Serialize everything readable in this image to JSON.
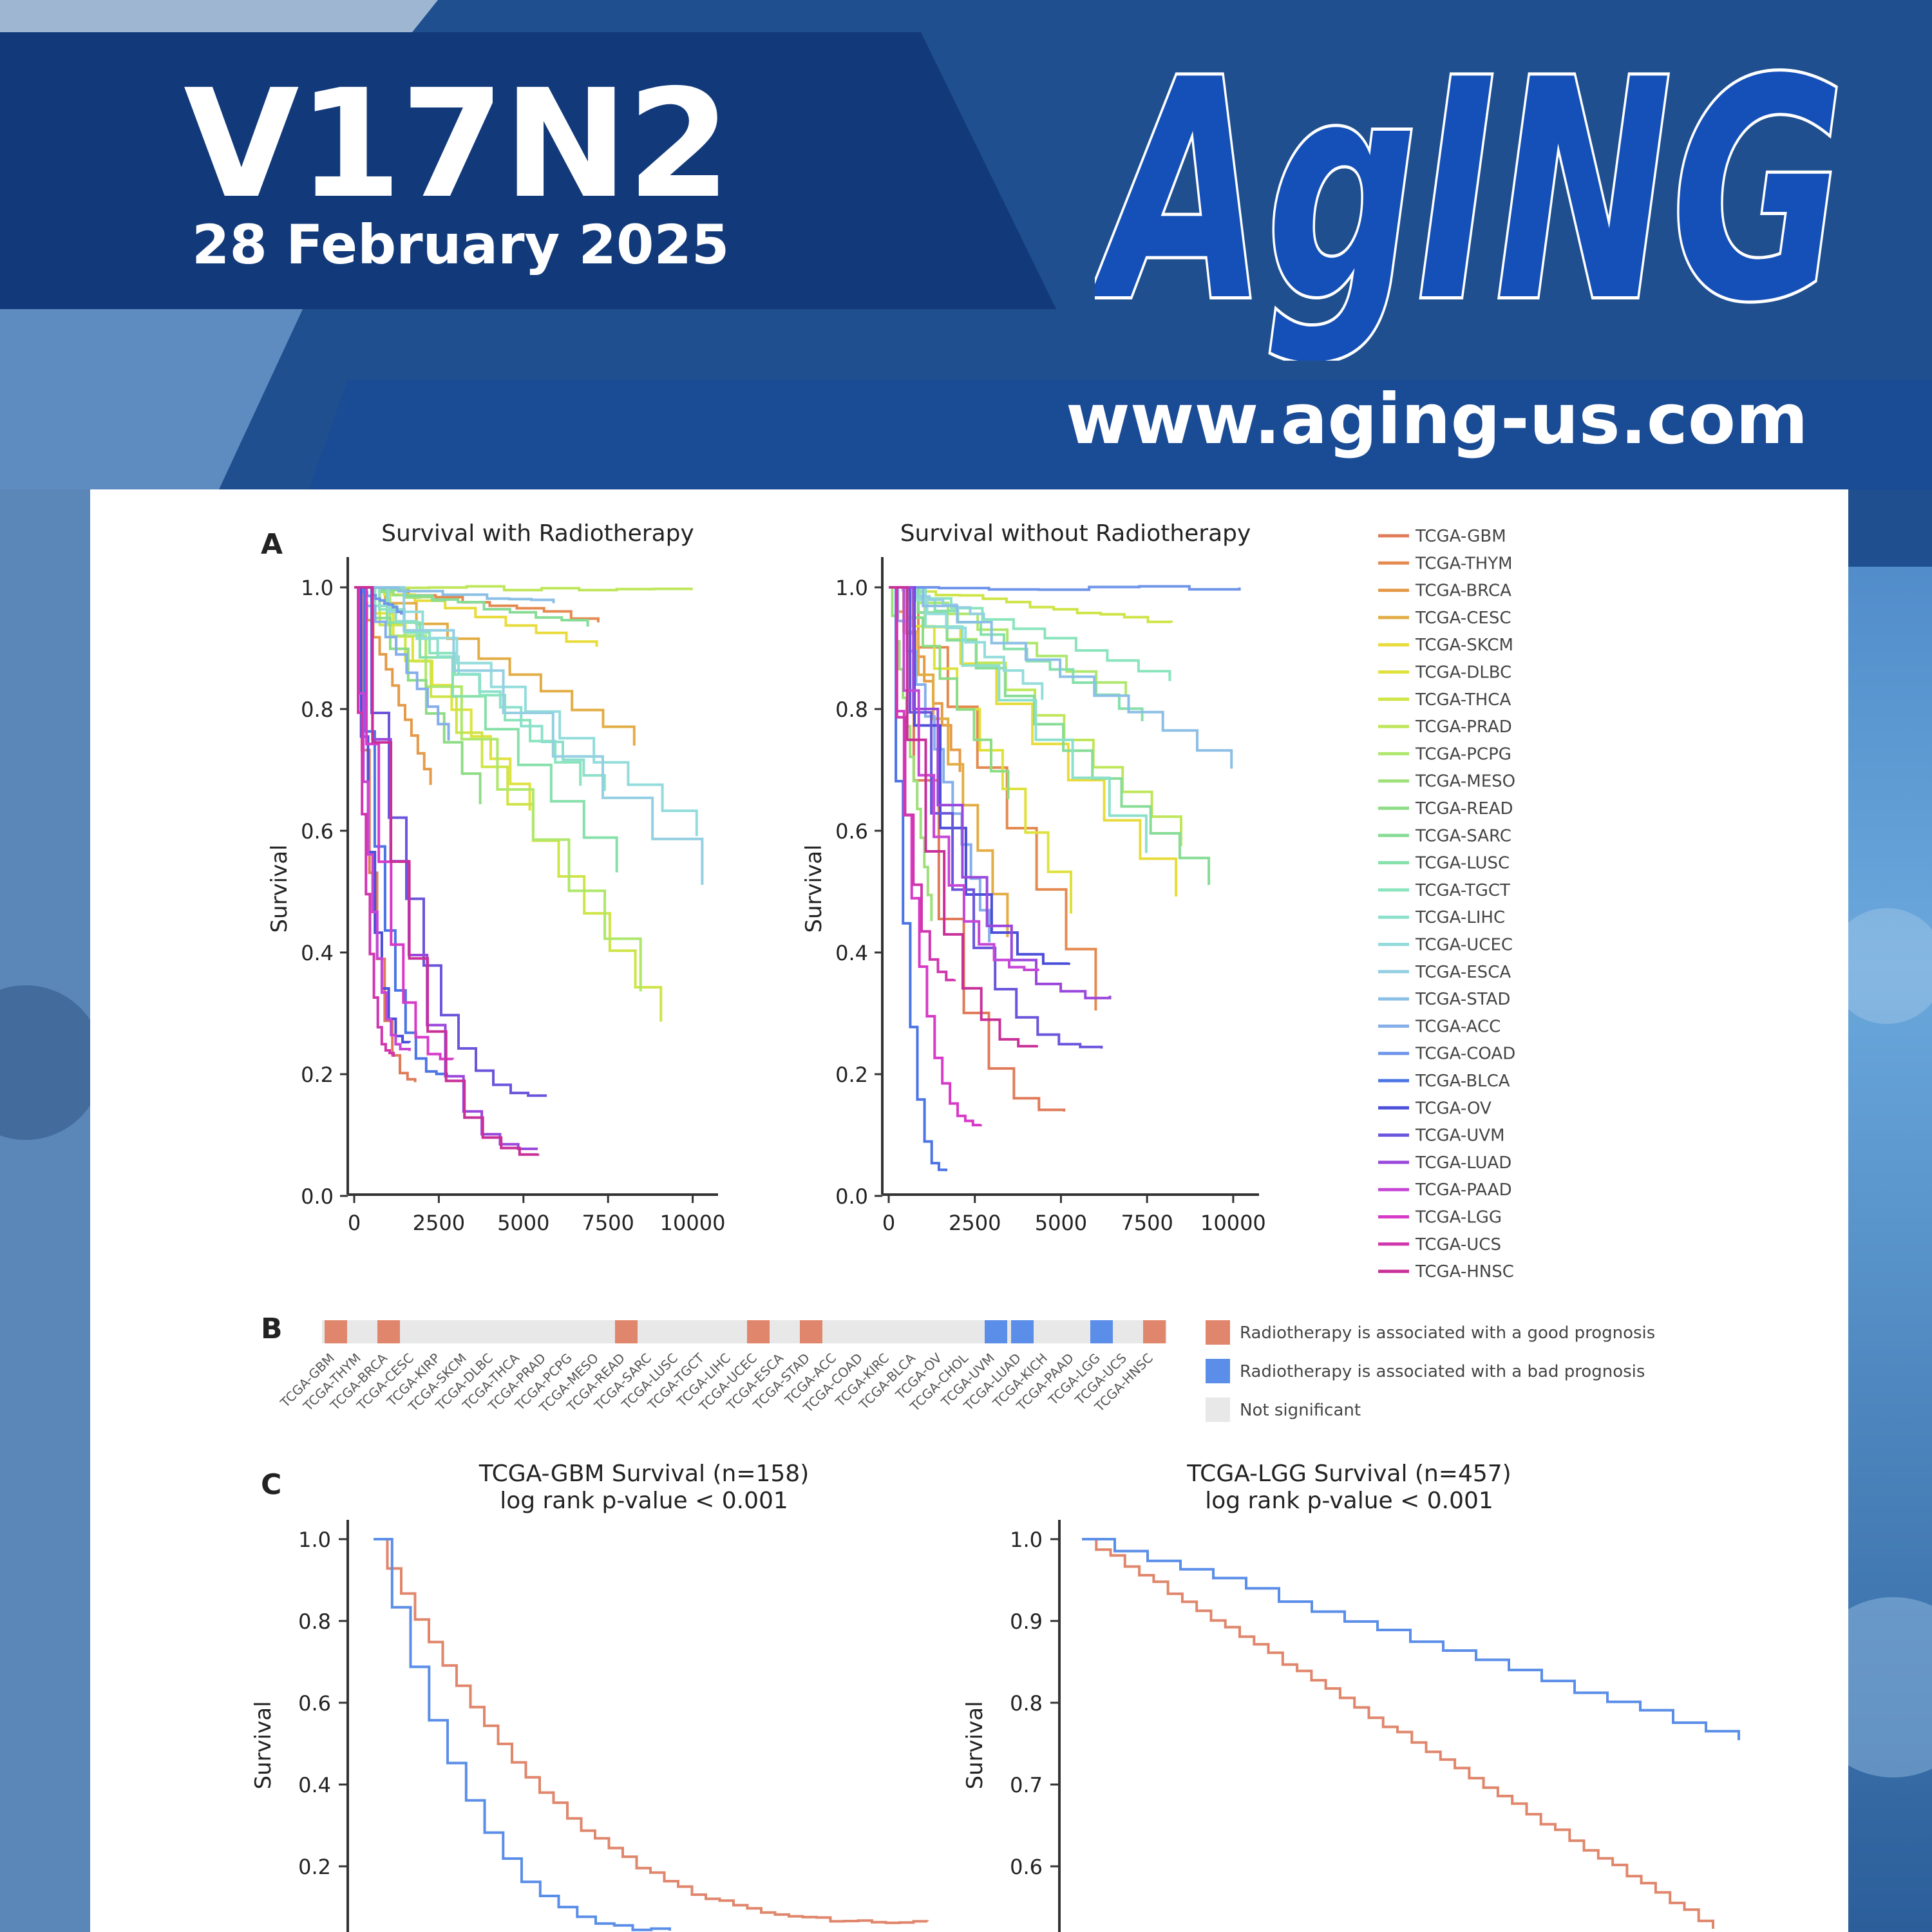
{
  "journal": {
    "logo_text": "AgING",
    "issue": "V17N2",
    "date": "28 February 2025",
    "url": "www.aging-us.com"
  },
  "colors": {
    "header_dark": "#123a7a",
    "header_mid": "#1d4d95",
    "logo_blue": "#1550b8",
    "good": "#e0866c",
    "bad": "#5b8ee8",
    "ns": "#e8e8e8"
  },
  "figure": {
    "panel_letters": [
      "A",
      "B",
      "C"
    ],
    "panel_a": {
      "left_title": "Survival with Radiotherapy",
      "right_title": "Survival without Radiotherapy",
      "ylabel": "Survival",
      "yticks": [
        "1.0",
        "0.8",
        "0.6",
        "0.4",
        "0.2",
        "0.0"
      ],
      "xticks": [
        "0",
        "2500",
        "5000",
        "7500",
        "10000"
      ],
      "legend": [
        "TCGA-GBM",
        "TCGA-THYM",
        "TCGA-BRCA",
        "TCGA-CESC",
        "TCGA-SKCM",
        "TCGA-DLBC",
        "TCGA-THCA",
        "TCGA-PRAD",
        "TCGA-PCPG",
        "TCGA-MESO",
        "TCGA-READ",
        "TCGA-SARC",
        "TCGA-LUSC",
        "TCGA-TGCT",
        "TCGA-LIHC",
        "TCGA-UCEC",
        "TCGA-ESCA",
        "TCGA-STAD",
        "TCGA-ACC",
        "TCGA-COAD",
        "TCGA-BLCA",
        "TCGA-OV",
        "TCGA-UVM",
        "TCGA-LUAD",
        "TCGA-PAAD",
        "TCGA-LGG",
        "TCGA-UCS",
        "TCGA-HNSC"
      ],
      "legend_colors": [
        "#e07b5a",
        "#e48a50",
        "#e59a48",
        "#e3ad45",
        "#e8dc3c",
        "#dfe23e",
        "#cfe447",
        "#bfe65a",
        "#aee76c",
        "#9ee07a",
        "#8edc86",
        "#87dc96",
        "#86e0aa",
        "#8ae4bc",
        "#8ce0cc",
        "#94dcdc",
        "#94cfe2",
        "#8cbfe6",
        "#86aeea",
        "#6f95ea",
        "#4b74e4",
        "#4b4ed8",
        "#6a56dc",
        "#9a48dc",
        "#c646d6",
        "#d83ac8",
        "#d036ae",
        "#c83098"
      ]
    },
    "panel_b": {
      "labels": [
        "TCGA-GBM",
        "TCGA-THYM",
        "TCGA-BRCA",
        "TCGA-CESC",
        "TCGA-KIRP",
        "TCGA-SKCM",
        "TCGA-DLBC",
        "TCGA-THCA",
        "TCGA-PRAD",
        "TCGA-PCPG",
        "TCGA-MESO",
        "TCGA-READ",
        "TCGA-SARC",
        "TCGA-LUSC",
        "TCGA-TGCT",
        "TCGA-LIHC",
        "TCGA-UCEC",
        "TCGA-ESCA",
        "TCGA-STAD",
        "TCGA-ACC",
        "TCGA-COAD",
        "TCGA-KIRC",
        "TCGA-BLCA",
        "TCGA-OV",
        "TCGA-CHOL",
        "TCGA-UVM",
        "TCGA-LUAD",
        "TCGA-KICH",
        "TCGA-PAAD",
        "TCGA-LGG",
        "TCGA-UCS",
        "TCGA-HNSC"
      ],
      "status": [
        "good",
        "ns",
        "good",
        "ns",
        "ns",
        "ns",
        "ns",
        "ns",
        "ns",
        "ns",
        "ns",
        "good",
        "ns",
        "ns",
        "ns",
        "ns",
        "good",
        "ns",
        "good",
        "ns",
        "ns",
        "ns",
        "ns",
        "ns",
        "ns",
        "bad",
        "bad",
        "ns",
        "ns",
        "bad",
        "ns",
        "good"
      ],
      "legend": [
        {
          "label": "Radiotherapy is associated with a good prognosis",
          "key": "good"
        },
        {
          "label": "Radiotherapy is associated with a bad prognosis",
          "key": "bad"
        },
        {
          "label": "Not significant",
          "key": "ns"
        }
      ]
    },
    "panel_c": {
      "ylabel": "Survival",
      "plots": [
        {
          "title": "TCGA-GBM Survival (n=158)",
          "subtitle": "log rank p-value <  0.001",
          "yticks": [
            "1.0",
            "0.8",
            "0.6",
            "0.4",
            "0.2"
          ]
        },
        {
          "title": "TCGA-LGG Survival (n=457)",
          "subtitle": "log rank p-value <  0.001",
          "yticks": [
            "1.0",
            "0.9",
            "0.8",
            "0.7",
            "0.6"
          ]
        }
      ]
    }
  }
}
